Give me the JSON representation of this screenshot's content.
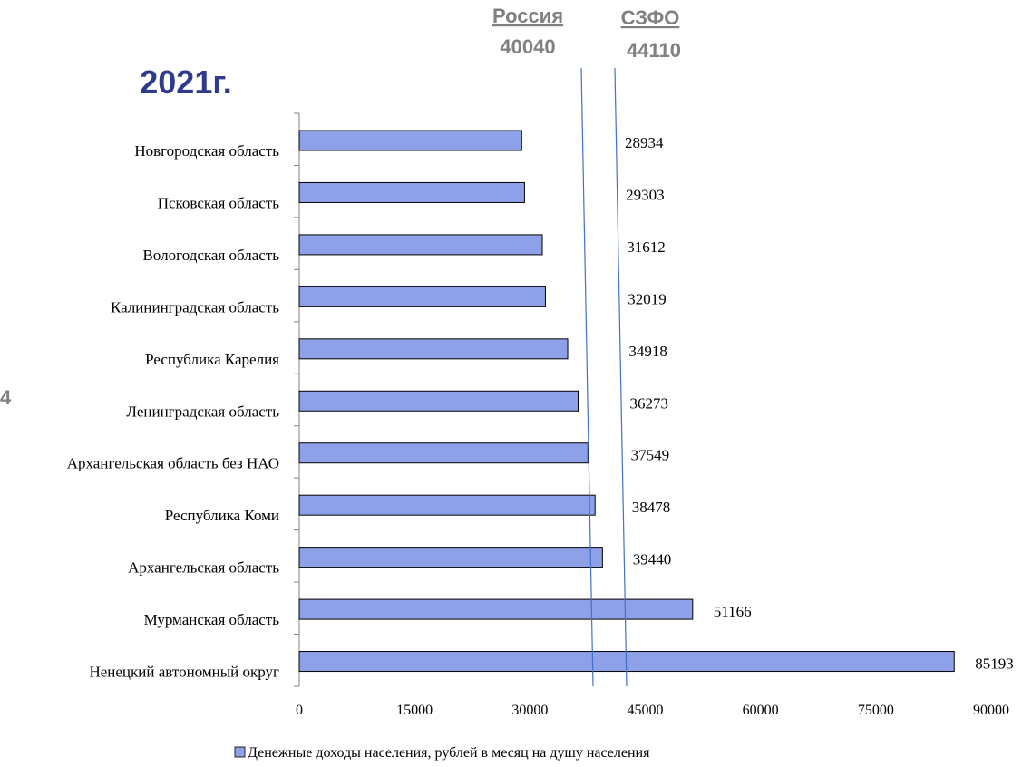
{
  "year_title": "2021г.",
  "edge_fragment": "4",
  "reference_lines": [
    {
      "name": "Россия",
      "value": 40040,
      "color": "#4472c4"
    },
    {
      "name": "СЗФО",
      "value": 44110,
      "color": "#4472c4"
    }
  ],
  "colors": {
    "bar_fill": "#8ea1e8",
    "bar_stroke": "#000000",
    "title": "#2e3a8c",
    "ref_label": "#808080",
    "axis": "#808080"
  },
  "chart_data": {
    "type": "bar",
    "orientation": "horizontal",
    "categories": [
      "Новгородская область",
      "Псковская область",
      "Вологодская область",
      "Калининградская область",
      "Республика Карелия",
      "Ленинградская область",
      "Архангельская область без НАО",
      "Республика Коми",
      "Архангельская область",
      "Мурманская область",
      "Ненецкий автономный округ"
    ],
    "series": [
      {
        "name": "Денежные доходы населения, рублей в месяц на душу населения",
        "values": [
          28934,
          29303,
          31612,
          32019,
          34918,
          36273,
          37549,
          38478,
          39440,
          51166,
          85193
        ]
      }
    ],
    "data_labels": [
      "28934",
      "29303",
      "31612",
      "32019",
      "34918",
      "36273",
      "37549",
      "38478",
      "39440",
      "51166",
      "85193"
    ],
    "xlim": [
      0,
      90000
    ],
    "x_ticks": [
      0,
      15000,
      30000,
      45000,
      60000,
      75000,
      90000
    ],
    "x_tick_labels": [
      "0",
      "15000",
      "30000",
      "45000",
      "60000",
      "75000",
      "90000"
    ],
    "legend": "Денежные доходы населения, рублей в месяц на душу населения",
    "legend_position": "bottom",
    "grid": false
  }
}
